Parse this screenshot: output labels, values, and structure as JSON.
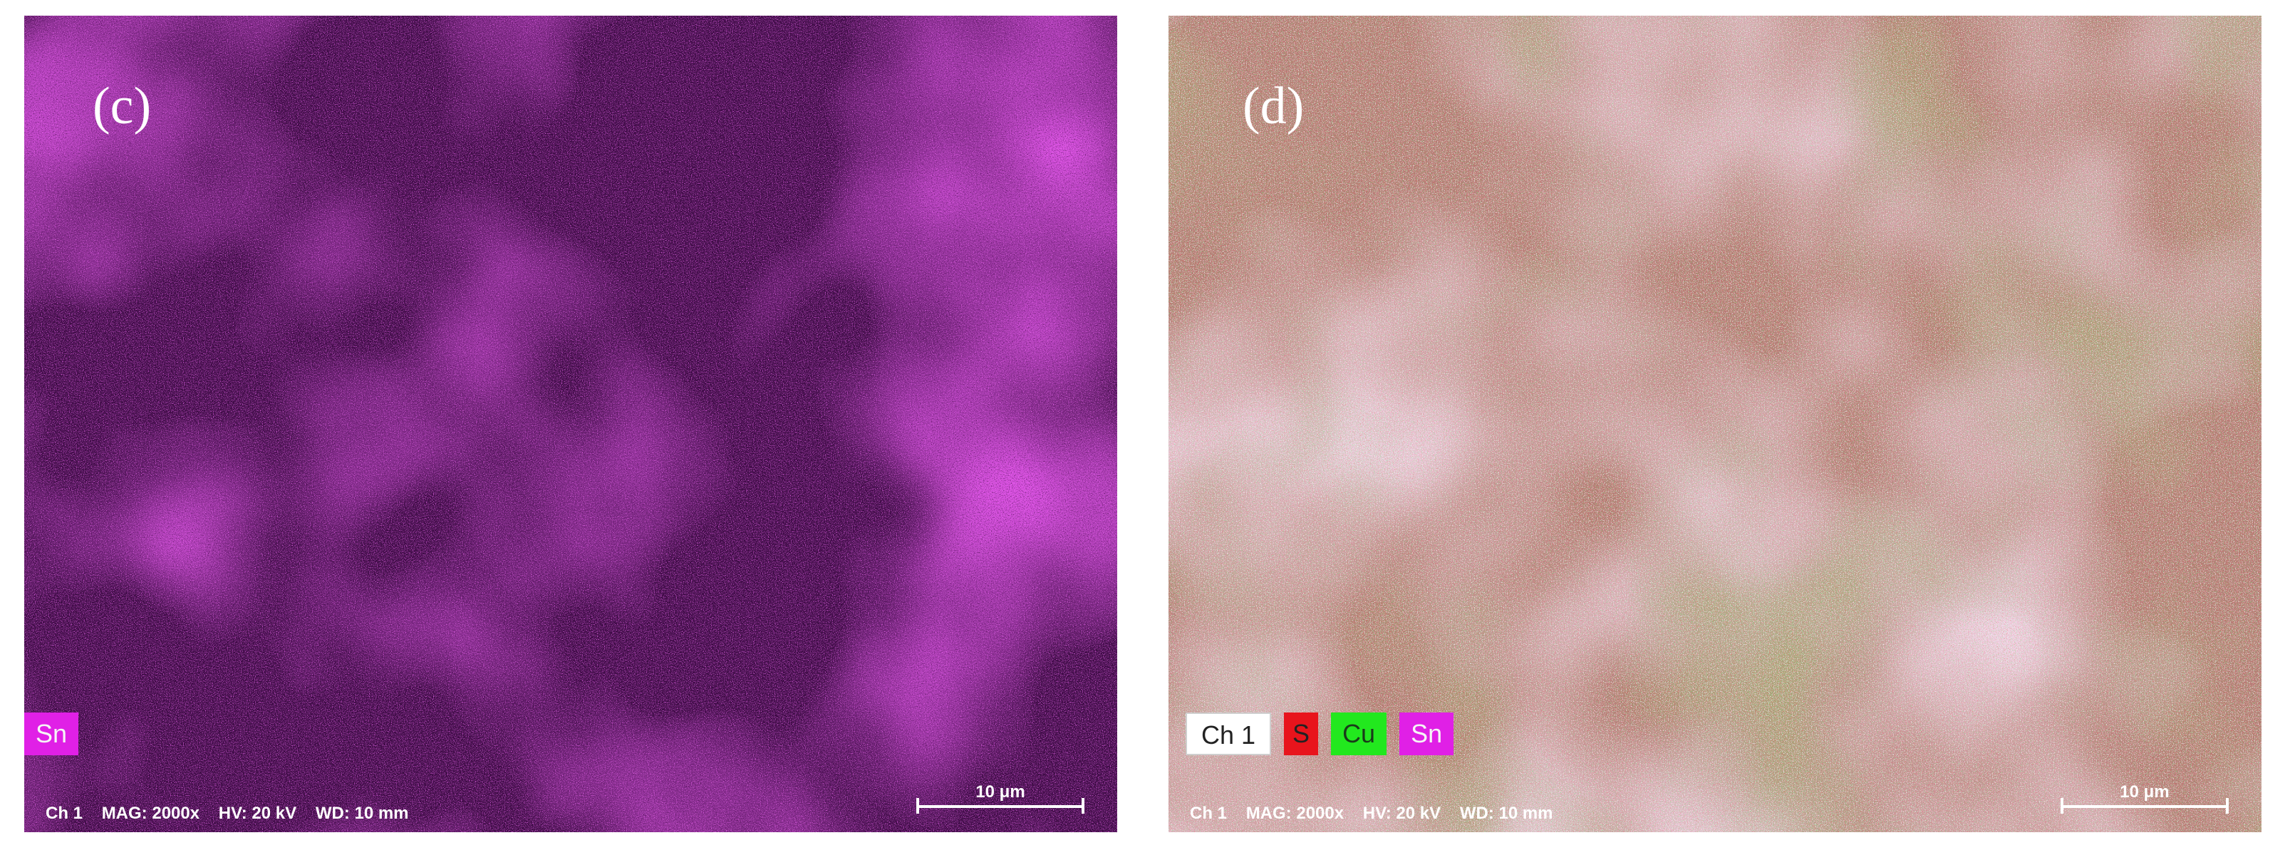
{
  "panels": [
    {
      "label": "(c)",
      "legend": [
        {
          "text": "Sn",
          "color": "#e020e6"
        }
      ],
      "info": {
        "channel": "Ch 1",
        "mag": "MAG: 2000x",
        "hv": "HV: 20 kV",
        "wd": "WD: 10 mm"
      },
      "scale": "10 μm",
      "colors": {
        "base": "#3c0c44",
        "dark": "#140414",
        "bright": "#c818d8"
      }
    },
    {
      "label": "(d)",
      "legend": [
        {
          "text": "Ch 1",
          "color": "#ffffff"
        },
        {
          "text": "S",
          "color": "#e8141c"
        },
        {
          "text": "Cu",
          "color": "#22e81e"
        },
        {
          "text": "Sn",
          "color": "#e020e6"
        }
      ],
      "info": {
        "channel": "Ch 1",
        "mag": "MAG: 2000x",
        "hv": "HV: 20 kV",
        "wd": "WD: 10 mm"
      },
      "scale": "10 μm",
      "colors": {
        "base": "#b07870",
        "pink": "#f0b8ee",
        "olive": "#6a5a2a",
        "dark": "#3a2a1a"
      }
    }
  ]
}
